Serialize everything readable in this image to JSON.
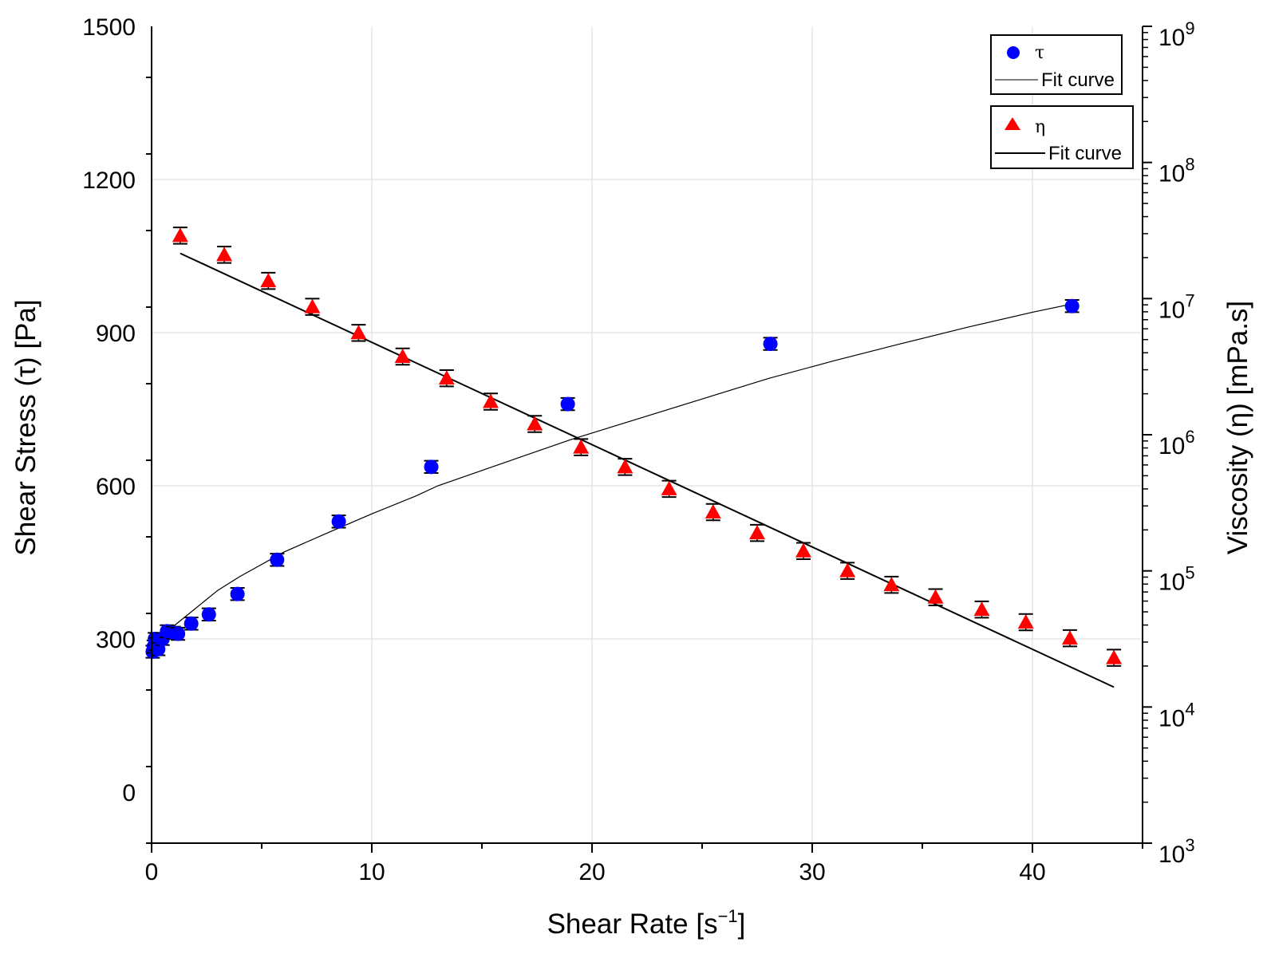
{
  "chart_data": {
    "type": "scatter",
    "xlabel_main": "Shear Rate [s",
    "xlabel_sup": "−1",
    "xlabel_end": "]",
    "ylabel_left": "Shear Stress (τ) [Pa]",
    "ylabel_right": "Viscosity (η) [mPa.s]",
    "xlim": [
      0,
      45
    ],
    "ylim_left": [
      -100,
      1500
    ],
    "ylim_right": [
      1000,
      1000000000
    ],
    "right_axis_scale": "log",
    "grid": true,
    "x_ticks": [
      "0",
      "10",
      "20",
      "30",
      "40"
    ],
    "y_left_ticks": [
      "0",
      "300",
      "600",
      "900",
      "1200",
      "1500"
    ],
    "y_right_ticks": [
      {
        "base": "10",
        "exp": "3"
      },
      {
        "base": "10",
        "exp": "4"
      },
      {
        "base": "10",
        "exp": "5"
      },
      {
        "base": "10",
        "exp": "6"
      },
      {
        "base": "10",
        "exp": "7"
      },
      {
        "base": "10",
        "exp": "8"
      },
      {
        "base": "10",
        "exp": "9"
      }
    ],
    "legend_placement": "top-right",
    "series": [
      {
        "name": "τ",
        "axis": "left",
        "marker": "circle",
        "color": "#0000ff",
        "points": [
          [
            0.05,
            275
          ],
          [
            0.1,
            285
          ],
          [
            0.15,
            300
          ],
          [
            0.2,
            290
          ],
          [
            0.3,
            280
          ],
          [
            0.5,
            300
          ],
          [
            0.7,
            315
          ],
          [
            1.0,
            312
          ],
          [
            1.2,
            310
          ],
          [
            1.8,
            330
          ],
          [
            2.6,
            348
          ],
          [
            3.9,
            388
          ],
          [
            5.7,
            455
          ],
          [
            8.5,
            530
          ],
          [
            12.7,
            637
          ],
          [
            18.9,
            760
          ],
          [
            28.1,
            878
          ],
          [
            41.8,
            952
          ]
        ],
        "error": 12,
        "fit_label": "Fit curve",
        "fit_curve": [
          [
            0.05,
            292
          ],
          [
            0.5,
            310
          ],
          [
            1.0,
            325
          ],
          [
            2.0,
            360
          ],
          [
            3.0,
            395
          ],
          [
            4.0,
            422
          ],
          [
            6.0,
            470
          ],
          [
            8.0,
            508
          ],
          [
            10.0,
            545
          ],
          [
            12.0,
            580
          ],
          [
            13.0,
            600
          ],
          [
            16.0,
            645
          ],
          [
            19.0,
            690
          ],
          [
            22.0,
            730
          ],
          [
            25.0,
            770
          ],
          [
            28.0,
            810
          ],
          [
            31.0,
            845
          ],
          [
            34.0,
            878
          ],
          [
            37.0,
            910
          ],
          [
            40.0,
            940
          ],
          [
            42.0,
            958
          ]
        ]
      },
      {
        "name": "η",
        "axis": "right",
        "marker": "triangle",
        "color": "#ff0000",
        "points": [
          [
            1.3,
            29000000
          ],
          [
            3.3,
            21000000
          ],
          [
            5.3,
            13500000
          ],
          [
            7.3,
            8700000
          ],
          [
            9.4,
            5600000
          ],
          [
            11.4,
            3750000
          ],
          [
            13.4,
            2600000
          ],
          [
            15.4,
            1750000
          ],
          [
            17.4,
            1200000
          ],
          [
            19.5,
            810000
          ],
          [
            21.5,
            580000
          ],
          [
            23.5,
            400000
          ],
          [
            25.5,
            270000
          ],
          [
            27.5,
            190000
          ],
          [
            29.6,
            140000
          ],
          [
            31.6,
            100000
          ],
          [
            33.6,
            79000
          ],
          [
            35.6,
            64000
          ],
          [
            37.7,
            52000
          ],
          [
            39.7,
            42000
          ],
          [
            41.7,
            32000
          ],
          [
            43.7,
            23000
          ]
        ],
        "error_log": 0.06,
        "fit_label": "Fit curve",
        "fit_curve": [
          [
            1.3,
            21500000
          ],
          [
            43.7,
            14000
          ]
        ]
      }
    ]
  }
}
